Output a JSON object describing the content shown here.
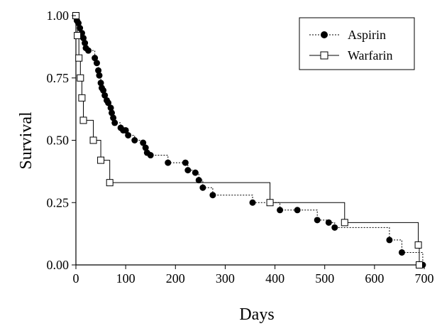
{
  "chart_data": {
    "type": "line",
    "subtype": "kaplan-meier step survival curve",
    "xlabel": "Days",
    "ylabel": "Survival",
    "xlim": [
      0,
      700
    ],
    "ylim": [
      0,
      1
    ],
    "xticks": [
      0,
      100,
      200,
      300,
      400,
      500,
      600,
      700
    ],
    "xtick_labels": [
      "0",
      "100",
      "200",
      "300",
      "400",
      "500",
      "600",
      "700"
    ],
    "yticks": [
      0,
      0.25,
      0.5,
      0.75,
      1.0
    ],
    "ytick_labels": [
      "0.00",
      "0.25",
      "0.50",
      "0.75",
      "1.00"
    ],
    "grid": false,
    "legend_position": "top-right",
    "series": [
      {
        "name": "Aspirin",
        "marker": "filled-circle",
        "color": "#000000",
        "points": [
          [
            0,
            1.0
          ],
          [
            2,
            0.98
          ],
          [
            5,
            0.97
          ],
          [
            8,
            0.95
          ],
          [
            12,
            0.93
          ],
          [
            15,
            0.91
          ],
          [
            18,
            0.89
          ],
          [
            20,
            0.87
          ],
          [
            25,
            0.86
          ],
          [
            38,
            0.83
          ],
          [
            42,
            0.81
          ],
          [
            45,
            0.78
          ],
          [
            47,
            0.76
          ],
          [
            50,
            0.73
          ],
          [
            52,
            0.71
          ],
          [
            55,
            0.7
          ],
          [
            58,
            0.68
          ],
          [
            62,
            0.66
          ],
          [
            65,
            0.65
          ],
          [
            70,
            0.63
          ],
          [
            72,
            0.61
          ],
          [
            75,
            0.59
          ],
          [
            78,
            0.57
          ],
          [
            90,
            0.55
          ],
          [
            95,
            0.54
          ],
          [
            100,
            0.54
          ],
          [
            105,
            0.52
          ],
          [
            118,
            0.5
          ],
          [
            135,
            0.49
          ],
          [
            140,
            0.47
          ],
          [
            143,
            0.45
          ],
          [
            150,
            0.44
          ],
          [
            185,
            0.41
          ],
          [
            220,
            0.41
          ],
          [
            225,
            0.38
          ],
          [
            240,
            0.37
          ],
          [
            247,
            0.34
          ],
          [
            255,
            0.31
          ],
          [
            275,
            0.28
          ],
          [
            355,
            0.25
          ],
          [
            410,
            0.22
          ],
          [
            445,
            0.22
          ],
          [
            485,
            0.18
          ],
          [
            508,
            0.17
          ],
          [
            520,
            0.15
          ],
          [
            630,
            0.1
          ],
          [
            655,
            0.05
          ],
          [
            697,
            0.0
          ]
        ]
      },
      {
        "name": "Warfarin",
        "marker": "open-square",
        "color": "#000000",
        "points": [
          [
            0,
            1.0
          ],
          [
            3,
            0.92
          ],
          [
            6,
            0.83
          ],
          [
            9,
            0.75
          ],
          [
            12,
            0.67
          ],
          [
            15,
            0.58
          ],
          [
            35,
            0.5
          ],
          [
            50,
            0.42
          ],
          [
            68,
            0.33
          ],
          [
            390,
            0.25
          ],
          [
            540,
            0.17
          ],
          [
            688,
            0.08
          ],
          [
            690,
            0.0
          ]
        ]
      }
    ]
  }
}
